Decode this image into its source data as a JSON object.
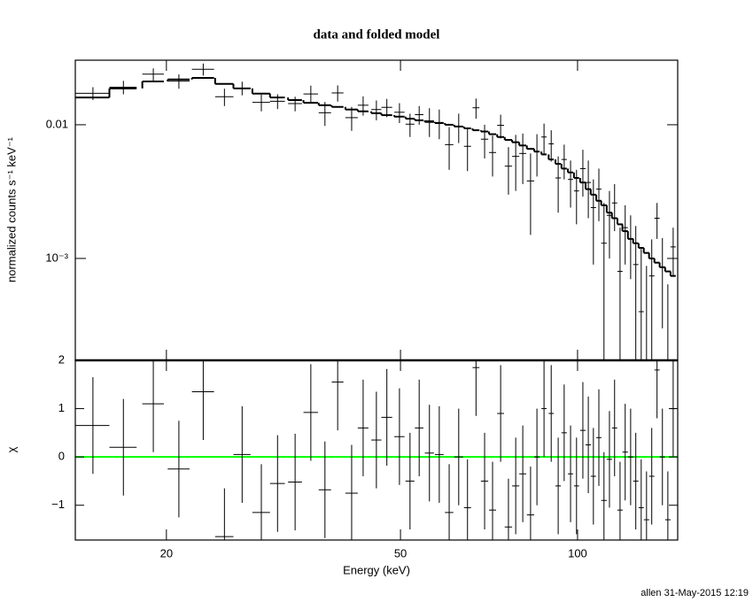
{
  "chart_data": [
    {
      "type": "spectrum",
      "title": "data and folded model",
      "ylabel": "normalized counts s⁻¹ keV⁻¹",
      "yscale": "log",
      "ylim": [
        0.000173,
        0.0304
      ],
      "yticks": [
        0.01,
        {
          "value": 0.001,
          "label": "10⁻³"
        }
      ],
      "color": "#000000",
      "model_color": "#000000",
      "x": [
        15.0,
        16.9,
        19.0,
        21.0,
        23.1,
        25.1,
        26.9,
        29.0,
        30.9,
        33.1,
        35.2,
        37.2,
        39.1,
        41.3,
        43.2,
        45.5,
        47.4,
        49.8,
        51.9,
        53.8,
        56.0,
        58.2,
        60.5,
        62.8,
        65.0,
        67.2,
        69.5,
        71.7,
        74.0,
        76.3,
        78.5,
        80.7,
        83.2,
        85.3,
        87.7,
        90.2,
        92.7,
        94.9,
        97.3,
        99.6,
        102.1,
        104.3,
        106.4,
        108.7,
        110.9,
        113.3,
        115.6,
        118.1,
        120.5,
        123.1,
        125.6,
        128.3,
        131.0,
        133.7,
        136.5,
        139.4,
        142.4,
        145.4
      ],
      "xerr": [
        1.0,
        0.9,
        0.8,
        0.9,
        1.0,
        0.9,
        0.9,
        1.0,
        0.9,
        0.9,
        1.0,
        0.9,
        0.9,
        1.0,
        0.9,
        0.9,
        1.0,
        1.0,
        0.9,
        0.9,
        1.0,
        1.0,
        1.0,
        1.1,
        0.9,
        0.9,
        1.0,
        1.0,
        1.0,
        1.1,
        1.1,
        1.1,
        1.2,
        0.9,
        0.9,
        0.9,
        1.0,
        1.0,
        1.0,
        1.0,
        1.1,
        1.1,
        1.1,
        1.1,
        1.2,
        1.2,
        1.2,
        1.2,
        1.3,
        1.3,
        1.3,
        1.3,
        1.4,
        1.4,
        1.4,
        1.5,
        1.5,
        1.5
      ],
      "values": [
        0.0172,
        0.0191,
        0.0239,
        0.0212,
        0.026,
        0.0162,
        0.0188,
        0.0147,
        0.015,
        0.0144,
        0.017,
        0.0123,
        0.0173,
        0.0113,
        0.014,
        0.013,
        0.0135,
        0.0124,
        0.0101,
        0.0119,
        0.0107,
        0.0104,
        0.0071,
        0.0097,
        0.0069,
        0.0134,
        0.0078,
        0.0062,
        0.0099,
        0.0049,
        0.0058,
        0.0061,
        0.0038,
        0.0063,
        0.0081,
        0.0072,
        0.004,
        0.0055,
        0.0039,
        0.0032,
        0.0047,
        0.0037,
        0.0024,
        0.0033,
        0.0013,
        0.0021,
        0.0026,
        0.0008,
        0.0017,
        0.0014,
        0.0009,
        0.0004,
        0.00016,
        0.00074,
        0.002,
        0.00086,
        0.00012,
        0.00122
      ],
      "errors": [
        0.0019,
        0.0022,
        0.0025,
        0.0026,
        0.0027,
        0.0024,
        0.0022,
        0.0021,
        0.0019,
        0.0018,
        0.0026,
        0.0025,
        0.0024,
        0.0023,
        0.0023,
        0.0022,
        0.0021,
        0.0021,
        0.002,
        0.0019,
        0.0026,
        0.0026,
        0.0025,
        0.0024,
        0.0024,
        0.0023,
        0.0022,
        0.0021,
        0.002,
        0.0019,
        0.0026,
        0.0025,
        0.0023,
        0.0022,
        0.0021,
        0.0019,
        0.0018,
        0.0016,
        0.0015,
        0.0014,
        0.0018,
        0.0017,
        0.0015,
        0.0014,
        0.0013,
        0.0011,
        0.001,
        0.0009,
        0.0008,
        0.0007,
        0.00085,
        0.00078,
        0.00072,
        0.00065,
        0.0006,
        0.00056,
        0.00052,
        0.00048
      ],
      "model": [
        0.016,
        0.0187,
        0.0211,
        0.0218,
        0.0224,
        0.0202,
        0.0187,
        0.0171,
        0.016,
        0.0153,
        0.0146,
        0.014,
        0.0136,
        0.013,
        0.0126,
        0.0122,
        0.0118,
        0.0115,
        0.0111,
        0.0108,
        0.0105,
        0.0103,
        0.01,
        0.0097,
        0.0094,
        0.0091,
        0.0089,
        0.0085,
        0.0081,
        0.0077,
        0.0074,
        0.007,
        0.0066,
        0.0063,
        0.006,
        0.0055,
        0.0051,
        0.0047,
        0.0044,
        0.004,
        0.0037,
        0.0033,
        0.003,
        0.0027,
        0.0025,
        0.0022,
        0.002,
        0.0018,
        0.0016,
        0.0014,
        0.0013,
        0.0012,
        0.0011,
        0.001,
        0.00093,
        0.00086,
        0.0008,
        0.00074
      ]
    },
    {
      "type": "residual",
      "ylabel": "χ",
      "xlabel": "Energy (keV)",
      "xscale": "log",
      "xlim": [
        14,
        148
      ],
      "xticks": [
        20,
        50,
        100
      ],
      "ylim": [
        -1.72,
        2
      ],
      "yticks": [
        {
          "value": -1,
          "label": "−1"
        },
        0,
        1,
        2
      ],
      "color": "#000000",
      "error": 1,
      "reference_line": {
        "value": 0,
        "color": "#00ff00"
      },
      "values": [
        0.65,
        0.2,
        1.1,
        -0.25,
        1.35,
        -1.65,
        0.05,
        -1.15,
        -0.55,
        -0.52,
        0.92,
        -0.68,
        1.55,
        -0.75,
        0.6,
        0.35,
        0.82,
        0.42,
        -0.5,
        0.6,
        0.08,
        0.05,
        -1.15,
        0,
        -1.05,
        1.85,
        -0.5,
        -1.1,
        0.9,
        -1.45,
        -0.6,
        -0.35,
        -1.2,
        0,
        1,
        0.9,
        -0.6,
        0.5,
        -0.35,
        -0.6,
        0.55,
        0.25,
        -0.4,
        0.4,
        -0.9,
        -0.05,
        0.6,
        -1.1,
        0.1,
        0,
        -0.5,
        -1.05,
        -1.3,
        -0.4,
        1.8,
        0,
        -1.3,
        1
      ]
    }
  ],
  "footer": "allen 31-May-2015 12:19"
}
